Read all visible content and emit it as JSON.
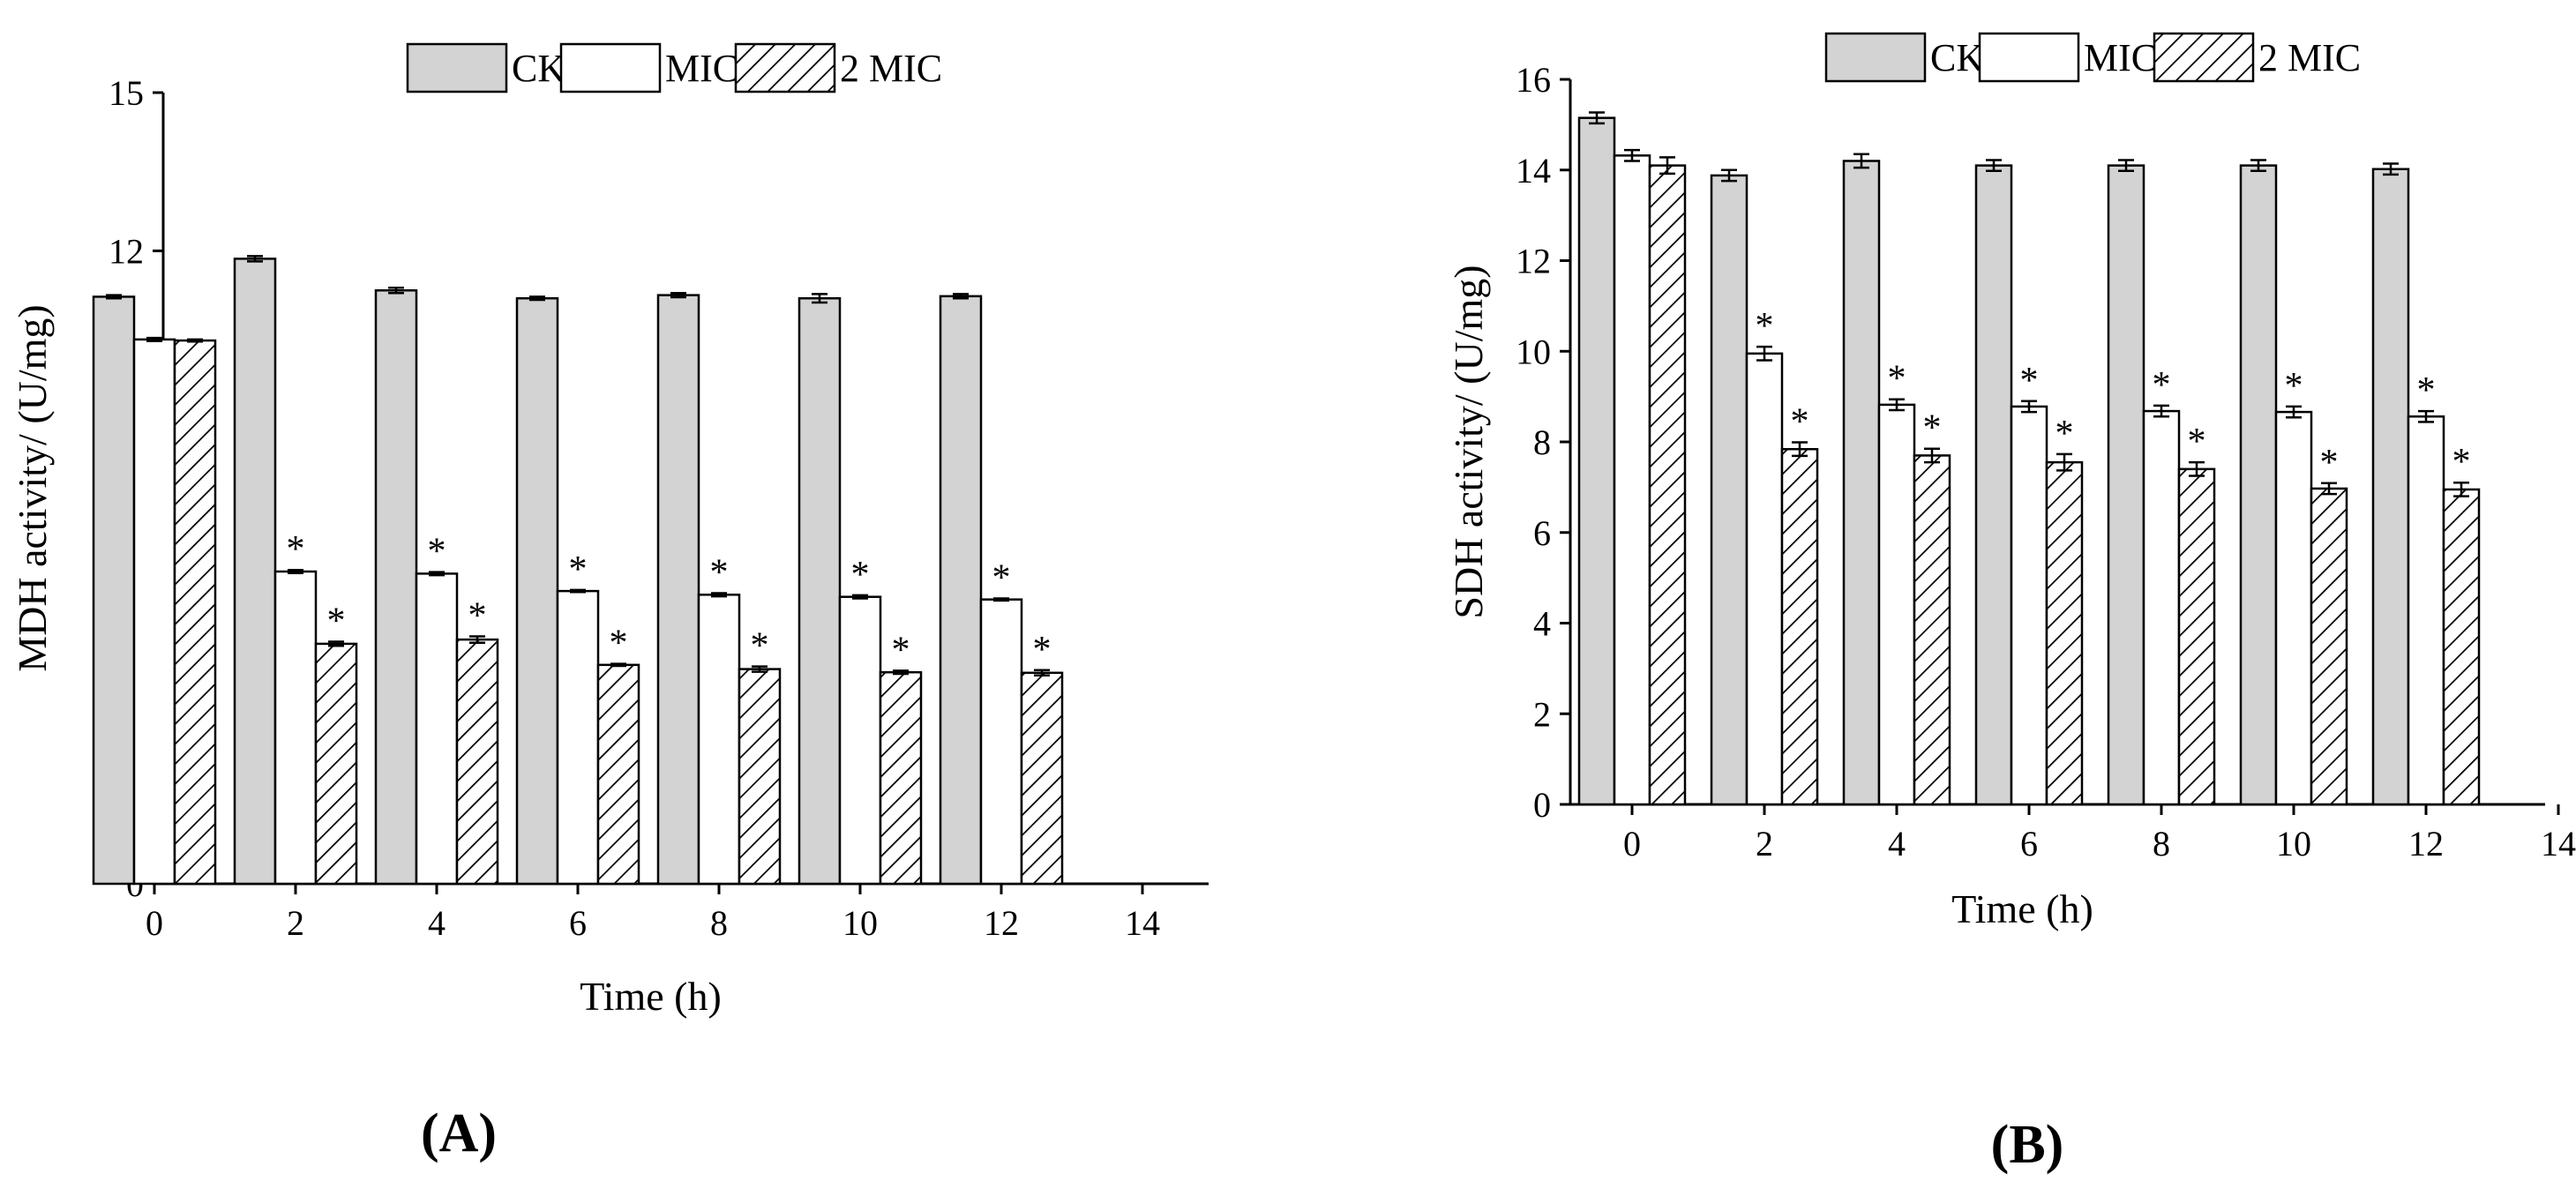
{
  "palette": {
    "ck": "#d3d3d3",
    "mic": "#ffffff",
    "mic2_hatch": "#000000"
  },
  "chart_data": [
    {
      "id": "A",
      "panel_label": "A",
      "type": "bar",
      "xlabel": "Time (h)",
      "ylabel": "MDH activity/ (U/mg)",
      "x_ticks": [
        0,
        2,
        4,
        6,
        8,
        10,
        12,
        14
      ],
      "xlim": [
        -1,
        14
      ],
      "y_ticks": [
        0,
        3,
        6,
        9,
        12,
        15
      ],
      "ylim": [
        0,
        15
      ],
      "legend_position": "top-center",
      "grid": false,
      "categories": [
        0,
        2,
        4,
        6,
        8,
        10,
        12
      ],
      "series": [
        {
          "name": "CK",
          "fill": "gray",
          "values": [
            11.13,
            11.85,
            11.25,
            11.1,
            11.16,
            11.1,
            11.14
          ],
          "errors": [
            0.03,
            0.05,
            0.05,
            0.03,
            0.04,
            0.08,
            0.04
          ],
          "significant": [
            false,
            false,
            false,
            false,
            false,
            false,
            false
          ]
        },
        {
          "name": "MIC",
          "fill": "white",
          "values": [
            10.32,
            5.92,
            5.88,
            5.55,
            5.48,
            5.44,
            5.39
          ],
          "errors": [
            0.03,
            0.03,
            0.03,
            0.02,
            0.03,
            0.03,
            0.02
          ],
          "significant": [
            false,
            true,
            true,
            true,
            true,
            true,
            true
          ]
        },
        {
          "name": "2 MIC",
          "fill": "hatch",
          "values": [
            10.3,
            4.55,
            4.63,
            4.15,
            4.07,
            4.01,
            4.0
          ],
          "errors": [
            0.02,
            0.04,
            0.06,
            0.02,
            0.05,
            0.03,
            0.05
          ],
          "significant": [
            false,
            true,
            true,
            true,
            true,
            true,
            true
          ]
        }
      ]
    },
    {
      "id": "B",
      "panel_label": "B",
      "type": "bar",
      "xlabel": "Time (h)",
      "ylabel": "SDH activity/ (U/mg)",
      "x_ticks": [
        0,
        2,
        4,
        6,
        8,
        10,
        12,
        14
      ],
      "xlim": [
        -1,
        14
      ],
      "y_ticks": [
        0,
        2,
        4,
        6,
        8,
        10,
        12,
        14,
        16
      ],
      "ylim": [
        0,
        16
      ],
      "legend_position": "top-center",
      "grid": false,
      "categories": [
        0,
        2,
        4,
        6,
        8,
        10,
        12
      ],
      "series": [
        {
          "name": "CK",
          "fill": "gray",
          "values": [
            15.15,
            13.88,
            14.2,
            14.1,
            14.1,
            14.1,
            14.02
          ],
          "errors": [
            0.12,
            0.12,
            0.15,
            0.12,
            0.12,
            0.12,
            0.12
          ],
          "significant": [
            false,
            false,
            false,
            false,
            false,
            false,
            false
          ]
        },
        {
          "name": "MIC",
          "fill": "white",
          "values": [
            14.32,
            9.95,
            8.82,
            8.78,
            8.68,
            8.66,
            8.56
          ],
          "errors": [
            0.12,
            0.15,
            0.12,
            0.12,
            0.12,
            0.12,
            0.12
          ],
          "significant": [
            false,
            true,
            true,
            true,
            true,
            true,
            true
          ]
        },
        {
          "name": "2 MIC",
          "fill": "hatch",
          "values": [
            14.1,
            7.84,
            7.7,
            7.55,
            7.4,
            6.97,
            6.95
          ],
          "errors": [
            0.18,
            0.15,
            0.15,
            0.18,
            0.15,
            0.12,
            0.15
          ],
          "significant": [
            false,
            true,
            true,
            true,
            true,
            true,
            true
          ]
        }
      ]
    }
  ]
}
